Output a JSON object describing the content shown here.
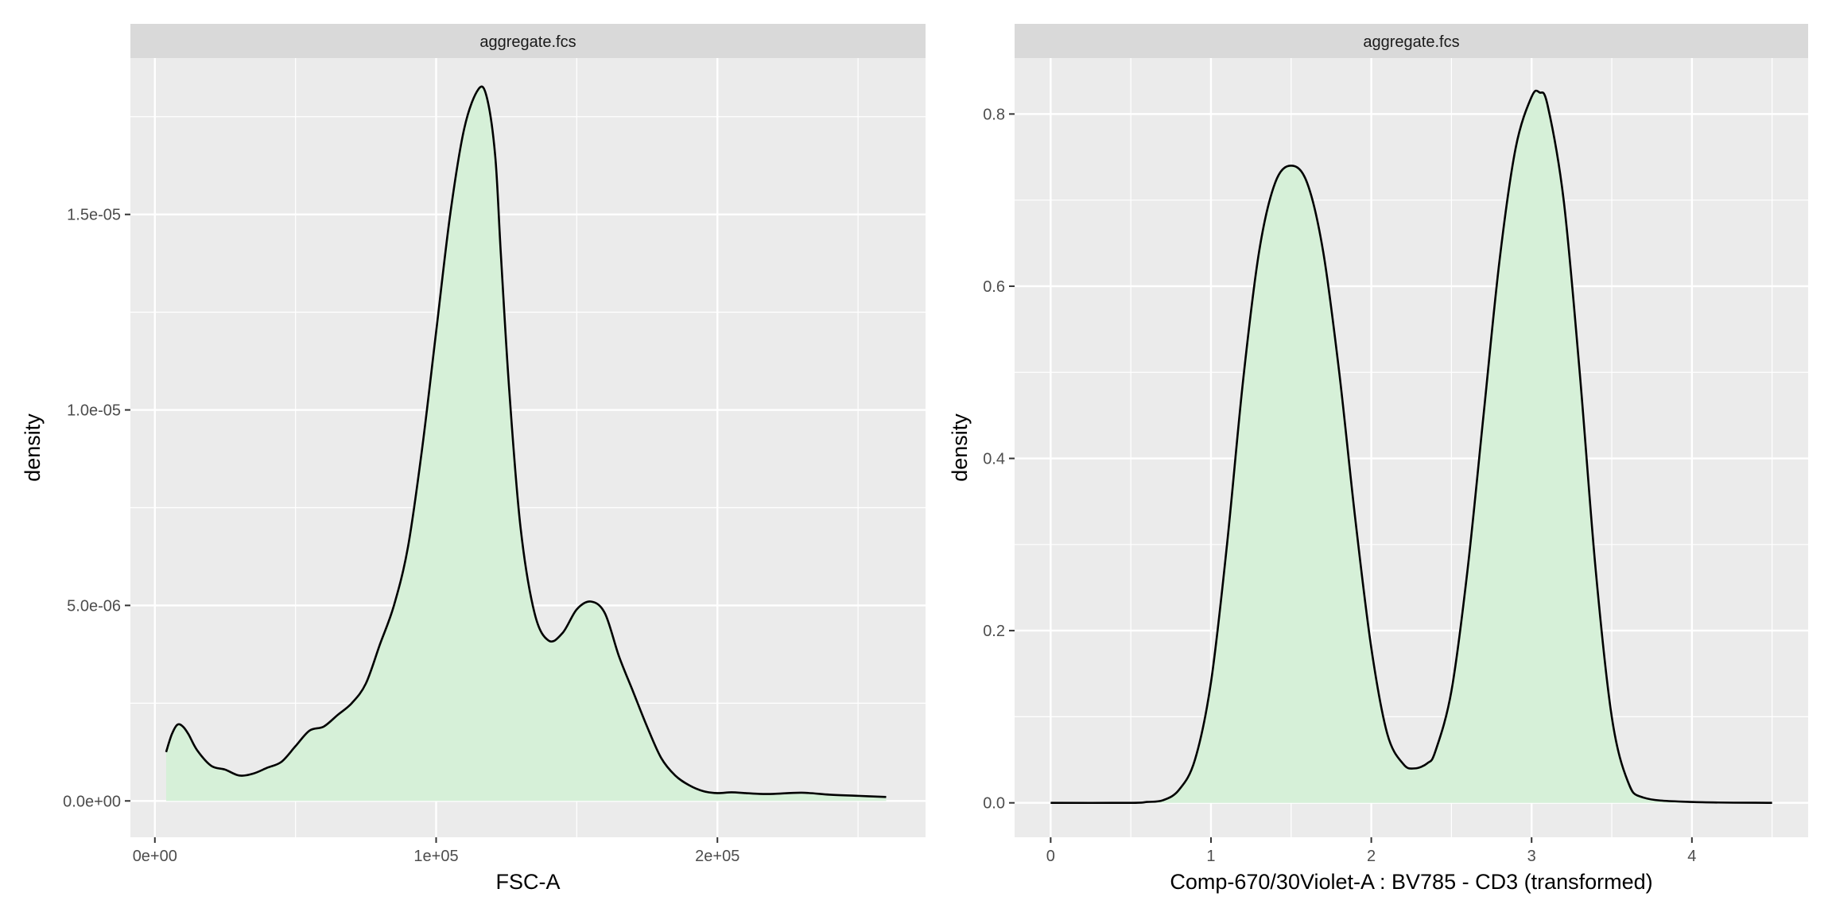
{
  "colors": {
    "panel_bg": "#EBEBEB",
    "strip_bg": "#D9D9D9",
    "grid_major": "#FFFFFF",
    "density_fill": "#D6F0D8",
    "density_line": "#000000",
    "tick_text": "#4D4D4D"
  },
  "chart_data": [
    {
      "type": "area",
      "strip_label": "aggregate.fcs",
      "xlabel": "FSC-A",
      "ylabel": "density",
      "xlim": [
        -8700,
        274000
      ],
      "ylim": [
        -9.3e-07,
        1.9e-05
      ],
      "x_ticks": [
        0,
        100000,
        200000
      ],
      "x_tick_labels": [
        "0e+00",
        "1e+05",
        "2e+05"
      ],
      "y_ticks": [
        0,
        5e-06,
        1e-05,
        1.5e-05
      ],
      "y_tick_labels": [
        "0.0e+00",
        "5.0e-06",
        "1.0e-05",
        "1.5e-05"
      ],
      "grid": true,
      "curve": {
        "x": [
          4000,
          6000,
          8000,
          10000,
          12000,
          15000,
          20000,
          25000,
          30000,
          35000,
          40000,
          45000,
          50000,
          55000,
          60000,
          65000,
          70000,
          75000,
          80000,
          85000,
          90000,
          95000,
          100000,
          105000,
          110000,
          115000,
          118000,
          121000,
          123000,
          126000,
          130000,
          135000,
          140000,
          145000,
          150000,
          155000,
          160000,
          165000,
          170000,
          175000,
          180000,
          185000,
          190000,
          195000,
          200000,
          205000,
          210000,
          215000,
          220000,
          230000,
          240000,
          250000,
          260000
        ],
        "y": [
          1.25e-06,
          1.7e-06,
          1.95e-06,
          1.9e-06,
          1.7e-06,
          1.3e-06,
          9e-07,
          8e-07,
          6.5e-07,
          7e-07,
          8.5e-07,
          1e-06,
          1.4e-06,
          1.8e-06,
          1.9e-06,
          2.2e-06,
          2.5e-06,
          3e-06,
          4e-06,
          5e-06,
          6.5e-06,
          9e-06,
          1.2e-05,
          1.5e-05,
          1.72e-05,
          1.82e-05,
          1.8e-05,
          1.65e-05,
          1.4e-05,
          1.05e-05,
          7e-06,
          4.8e-06,
          4.1e-06,
          4.3e-06,
          4.9e-06,
          5.1e-06,
          4.8e-06,
          3.7e-06,
          2.8e-06,
          1.9e-06,
          1.1e-06,
          6.5e-07,
          4e-07,
          2.5e-07,
          2e-07,
          2.2e-07,
          2e-07,
          1.8e-07,
          1.8e-07,
          2.1e-07,
          1.6e-07,
          1.3e-07,
          1e-07
        ]
      }
    },
    {
      "type": "area",
      "strip_label": "aggregate.fcs",
      "xlabel": "Comp-670/30Violet-A : BV785 - CD3 (transformed)",
      "ylabel": "density",
      "xlim": [
        -0.225,
        4.725
      ],
      "ylim": [
        -0.04,
        0.865
      ],
      "x_ticks": [
        0,
        1,
        2,
        3,
        4
      ],
      "x_tick_labels": [
        "0",
        "1",
        "2",
        "3",
        "4"
      ],
      "y_ticks": [
        0,
        0.2,
        0.4,
        0.6,
        0.8
      ],
      "y_tick_labels": [
        "0.0",
        "0.2",
        "0.4",
        "0.6",
        "0.8"
      ],
      "grid": true,
      "curve": {
        "x": [
          0,
          0.5,
          0.6,
          0.7,
          0.8,
          0.9,
          1.0,
          1.1,
          1.2,
          1.3,
          1.4,
          1.5,
          1.6,
          1.7,
          1.8,
          1.9,
          2.0,
          2.1,
          2.2,
          2.27,
          2.35,
          2.4,
          2.5,
          2.6,
          2.7,
          2.8,
          2.9,
          3.0,
          3.05,
          3.1,
          3.2,
          3.3,
          3.4,
          3.5,
          3.6,
          3.7,
          4.0,
          4.5
        ],
        "y": [
          0,
          0,
          0.001,
          0.003,
          0.015,
          0.05,
          0.14,
          0.3,
          0.49,
          0.64,
          0.72,
          0.74,
          0.72,
          0.64,
          0.5,
          0.33,
          0.18,
          0.08,
          0.045,
          0.04,
          0.046,
          0.06,
          0.13,
          0.27,
          0.45,
          0.63,
          0.76,
          0.82,
          0.825,
          0.81,
          0.7,
          0.5,
          0.27,
          0.1,
          0.025,
          0.006,
          0.001,
          0
        ]
      }
    }
  ]
}
